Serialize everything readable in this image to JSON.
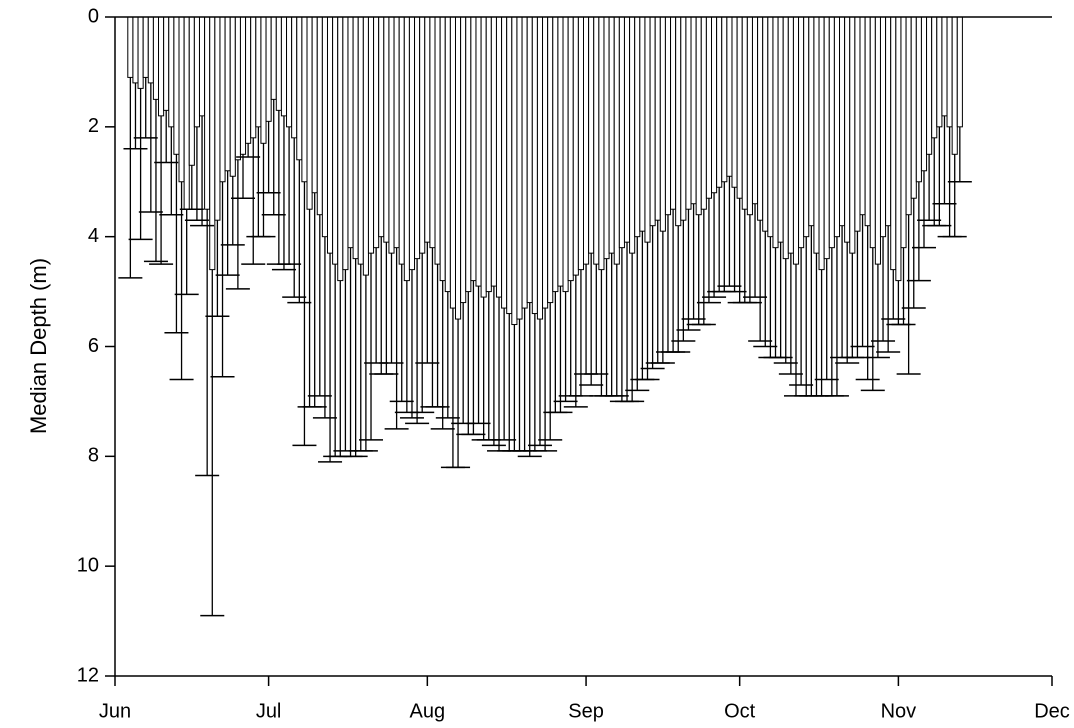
{
  "chart_data": {
    "type": "bar",
    "y_label": "Median Depth (m)",
    "ylim": [
      0,
      12
    ],
    "yticks": [
      0,
      2,
      4,
      6,
      8,
      10,
      12
    ],
    "y_inverted": true,
    "xlim": [
      0,
      183
    ],
    "xticks": [
      {
        "value": 0,
        "label": "Jun"
      },
      {
        "value": 30,
        "label": "Jul"
      },
      {
        "value": 61,
        "label": "Aug"
      },
      {
        "value": 92,
        "label": "Sep"
      },
      {
        "value": 122,
        "label": "Oct"
      },
      {
        "value": 153,
        "label": "Nov"
      },
      {
        "value": 183,
        "label": "Dec"
      }
    ],
    "x": [
      3,
      4,
      5,
      6,
      7,
      8,
      9,
      10,
      11,
      12,
      13,
      14,
      15,
      16,
      17,
      18,
      19,
      20,
      21,
      22,
      23,
      24,
      25,
      26,
      27,
      28,
      29,
      30,
      31,
      32,
      33,
      34,
      35,
      36,
      37,
      38,
      39,
      40,
      41,
      42,
      43,
      44,
      45,
      46,
      47,
      48,
      49,
      50,
      51,
      52,
      53,
      54,
      55,
      56,
      57,
      58,
      59,
      60,
      61,
      62,
      63,
      64,
      65,
      66,
      67,
      68,
      69,
      70,
      71,
      72,
      73,
      74,
      75,
      76,
      77,
      78,
      79,
      80,
      81,
      82,
      83,
      84,
      85,
      86,
      87,
      88,
      89,
      90,
      91,
      92,
      93,
      94,
      95,
      96,
      97,
      98,
      99,
      100,
      101,
      102,
      103,
      104,
      105,
      106,
      107,
      108,
      109,
      110,
      111,
      112,
      113,
      114,
      115,
      116,
      117,
      118,
      119,
      120,
      121,
      122,
      123,
      124,
      125,
      126,
      127,
      128,
      129,
      130,
      131,
      132,
      133,
      134,
      135,
      136,
      137,
      138,
      139,
      140,
      141,
      142,
      143,
      144,
      145,
      146,
      147,
      148,
      149,
      150,
      151,
      152,
      153,
      154,
      155,
      156,
      157,
      158,
      159,
      160,
      161,
      162,
      163,
      164,
      165
    ],
    "series": [
      {
        "color": "#000000",
        "values": [
          1.1,
          1.2,
          1.3,
          1.1,
          1.2,
          1.5,
          1.8,
          1.7,
          2.0,
          2.5,
          3.0,
          3.5,
          2.7,
          2.0,
          1.8,
          3.5,
          4.6,
          3.7,
          3.0,
          2.8,
          2.9,
          2.6,
          2.5,
          2.3,
          2.2,
          2.0,
          2.3,
          1.9,
          1.5,
          1.7,
          1.8,
          2.0,
          2.2,
          2.6,
          3.0,
          3.5,
          3.2,
          3.6,
          4.0,
          4.3,
          4.5,
          4.8,
          4.6,
          4.2,
          4.4,
          4.5,
          4.7,
          4.3,
          4.2,
          4.0,
          4.1,
          4.3,
          4.2,
          4.5,
          4.8,
          4.6,
          4.4,
          4.3,
          4.1,
          4.2,
          4.5,
          4.8,
          5.0,
          5.3,
          5.5,
          5.2,
          5.0,
          4.8,
          4.9,
          5.1,
          5.0,
          4.9,
          5.1,
          5.3,
          5.4,
          5.6,
          5.5,
          5.3,
          5.2,
          5.4,
          5.5,
          5.3,
          5.2,
          5.0,
          4.9,
          5.0,
          4.8,
          4.7,
          4.6,
          4.5,
          4.3,
          4.5,
          4.6,
          4.4,
          4.3,
          4.5,
          4.2,
          4.1,
          4.3,
          4.0,
          3.9,
          4.1,
          3.8,
          3.7,
          3.9,
          3.6,
          3.5,
          3.8,
          3.7,
          3.5,
          3.4,
          3.6,
          3.5,
          3.3,
          3.2,
          3.1,
          3.0,
          2.9,
          3.1,
          3.3,
          3.5,
          3.6,
          3.4,
          3.7,
          3.9,
          4.0,
          4.2,
          4.1,
          4.4,
          4.3,
          4.5,
          4.2,
          4.0,
          3.8,
          4.3,
          4.6,
          4.4,
          4.2,
          4.0,
          3.8,
          4.1,
          4.3,
          3.9,
          3.6,
          3.8,
          4.2,
          4.5,
          4.0,
          3.8,
          4.6,
          4.8,
          4.2,
          3.6,
          3.3,
          3.0,
          2.8,
          2.5,
          2.2,
          2.0,
          1.8,
          2.0,
          2.5,
          2.0
        ],
        "errors": [
          3.65,
          1.2,
          2.75,
          1.1,
          2.35,
          2.95,
          2.7,
          0.95,
          1.6,
          3.25,
          3.6,
          1.55,
          0.8,
          1.7,
          2.0,
          4.85,
          6.3,
          1.75,
          3.55,
          1.9,
          1.25,
          2.35,
          0.8,
          0.25,
          2.3,
          2.0,
          1.7,
          1.3,
          2.1,
          2.8,
          2.8,
          2.5,
          2.9,
          2.6,
          4.8,
          3.6,
          3.9,
          3.3,
          3.3,
          3.8,
          3.5,
          3.2,
          3.3,
          3.8,
          3.6,
          3.4,
          3.2,
          3.4,
          2.1,
          2.5,
          2.4,
          2.0,
          3.3,
          2.5,
          2.4,
          2.7,
          3.0,
          2.9,
          2.2,
          2.9,
          2.6,
          2.7,
          2.3,
          2.9,
          2.7,
          2.2,
          2.6,
          2.8,
          2.5,
          2.6,
          2.7,
          2.9,
          2.8,
          2.4,
          2.5,
          2.3,
          2.4,
          2.6,
          2.8,
          2.5,
          2.3,
          2.6,
          2.5,
          2.2,
          2.3,
          2.0,
          2.1,
          2.4,
          2.3,
          2.0,
          2.4,
          2.0,
          2.3,
          2.5,
          2.6,
          2.4,
          2.8,
          2.9,
          2.7,
          2.8,
          2.7,
          2.5,
          2.6,
          2.6,
          2.4,
          2.5,
          2.6,
          2.3,
          2.2,
          2.2,
          2.1,
          2.0,
          2.1,
          1.9,
          1.9,
          1.9,
          2.0,
          2.0,
          1.9,
          1.9,
          1.7,
          1.6,
          1.7,
          2.2,
          2.1,
          2.2,
          2.0,
          2.1,
          1.9,
          2.2,
          2.4,
          2.5,
          2.9,
          3.1,
          2.6,
          2.3,
          2.2,
          2.7,
          2.9,
          2.4,
          2.2,
          1.9,
          2.3,
          2.4,
          2.8,
          2.6,
          1.7,
          1.9,
          2.3,
          0.9,
          0.8,
          1.4,
          2.9,
          2.0,
          1.8,
          1.4,
          1.2,
          1.6,
          1.8,
          1.6,
          2.0,
          1.5,
          1.0
        ]
      }
    ]
  }
}
